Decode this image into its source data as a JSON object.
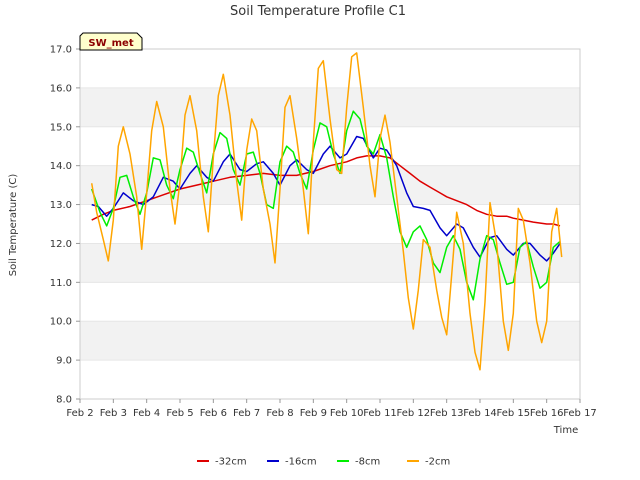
{
  "chart_data": {
    "type": "line",
    "title": "Soil Temperature Profile C1",
    "xlabel": "Time",
    "ylabel": "Soil Temperature (C)",
    "station_label": "SW_met",
    "xlim": [
      2,
      17
    ],
    "ylim": [
      8.0,
      17.0
    ],
    "x_ticks": [
      2,
      3,
      4,
      5,
      6,
      7,
      8,
      9,
      10,
      11,
      12,
      13,
      14,
      15,
      16,
      17
    ],
    "x_tick_labels": [
      "Feb 2",
      "Feb 3",
      "Feb 4",
      "Feb 5",
      "Feb 6",
      "Feb 7",
      "Feb 8",
      "Feb 9",
      "Feb 10",
      "Feb 11",
      "Feb 12",
      "Feb 13",
      "Feb 14",
      "Feb 15",
      "Feb 16",
      "Feb 17"
    ],
    "y_ticks": [
      8.0,
      9.0,
      10.0,
      11.0,
      12.0,
      13.0,
      14.0,
      15.0,
      16.0,
      17.0
    ],
    "y_tick_labels": [
      "8.0",
      "9.0",
      "10.0",
      "11.0",
      "12.0",
      "13.0",
      "14.0",
      "15.0",
      "16.0",
      "17.0"
    ],
    "grid": "horizontal bands",
    "legend_position": "bottom",
    "series": [
      {
        "name": "-32cm",
        "color": "#dd0000",
        "points": [
          [
            2.35,
            12.6
          ],
          [
            2.7,
            12.75
          ],
          [
            3.0,
            12.85
          ],
          [
            3.5,
            12.95
          ],
          [
            4.0,
            13.1
          ],
          [
            4.5,
            13.25
          ],
          [
            5.0,
            13.4
          ],
          [
            5.5,
            13.5
          ],
          [
            6.0,
            13.6
          ],
          [
            6.5,
            13.7
          ],
          [
            7.0,
            13.75
          ],
          [
            7.5,
            13.8
          ],
          [
            8.0,
            13.75
          ],
          [
            8.5,
            13.75
          ],
          [
            9.0,
            13.85
          ],
          [
            9.5,
            14.0
          ],
          [
            10.0,
            14.1
          ],
          [
            10.3,
            14.2
          ],
          [
            10.6,
            14.25
          ],
          [
            11.0,
            14.25
          ],
          [
            11.3,
            14.2
          ],
          [
            11.6,
            14.0
          ],
          [
            11.9,
            13.8
          ],
          [
            12.2,
            13.6
          ],
          [
            12.5,
            13.45
          ],
          [
            12.8,
            13.3
          ],
          [
            13.0,
            13.2
          ],
          [
            13.3,
            13.1
          ],
          [
            13.6,
            13.0
          ],
          [
            13.9,
            12.85
          ],
          [
            14.2,
            12.75
          ],
          [
            14.5,
            12.7
          ],
          [
            14.8,
            12.7
          ],
          [
            15.0,
            12.65
          ],
          [
            15.3,
            12.6
          ],
          [
            15.6,
            12.55
          ],
          [
            16.0,
            12.5
          ],
          [
            16.2,
            12.5
          ],
          [
            16.4,
            12.45
          ]
        ]
      },
      {
        "name": "-16cm",
        "color": "#0000cc",
        "points": [
          [
            2.35,
            13.0
          ],
          [
            2.55,
            12.95
          ],
          [
            2.8,
            12.7
          ],
          [
            3.0,
            12.9
          ],
          [
            3.3,
            13.3
          ],
          [
            3.6,
            13.1
          ],
          [
            3.9,
            13.0
          ],
          [
            4.2,
            13.2
          ],
          [
            4.5,
            13.7
          ],
          [
            4.8,
            13.6
          ],
          [
            5.0,
            13.4
          ],
          [
            5.3,
            13.8
          ],
          [
            5.5,
            14.0
          ],
          [
            5.8,
            13.7
          ],
          [
            6.0,
            13.6
          ],
          [
            6.3,
            14.1
          ],
          [
            6.5,
            14.3
          ],
          [
            6.8,
            13.9
          ],
          [
            7.0,
            13.85
          ],
          [
            7.3,
            14.05
          ],
          [
            7.5,
            14.1
          ],
          [
            7.8,
            13.8
          ],
          [
            8.0,
            13.5
          ],
          [
            8.3,
            14.0
          ],
          [
            8.5,
            14.15
          ],
          [
            8.8,
            13.9
          ],
          [
            9.0,
            13.8
          ],
          [
            9.3,
            14.3
          ],
          [
            9.5,
            14.5
          ],
          [
            9.8,
            14.2
          ],
          [
            10.0,
            14.3
          ],
          [
            10.3,
            14.75
          ],
          [
            10.5,
            14.7
          ],
          [
            10.8,
            14.2
          ],
          [
            11.0,
            14.45
          ],
          [
            11.2,
            14.4
          ],
          [
            11.5,
            14.0
          ],
          [
            11.8,
            13.3
          ],
          [
            12.0,
            12.95
          ],
          [
            12.3,
            12.9
          ],
          [
            12.5,
            12.85
          ],
          [
            12.8,
            12.4
          ],
          [
            13.0,
            12.2
          ],
          [
            13.3,
            12.5
          ],
          [
            13.5,
            12.4
          ],
          [
            13.8,
            11.9
          ],
          [
            14.0,
            11.65
          ],
          [
            14.3,
            12.15
          ],
          [
            14.5,
            12.2
          ],
          [
            14.8,
            11.85
          ],
          [
            15.0,
            11.7
          ],
          [
            15.3,
            12.0
          ],
          [
            15.5,
            12.0
          ],
          [
            15.8,
            11.7
          ],
          [
            16.0,
            11.55
          ],
          [
            16.2,
            11.75
          ],
          [
            16.4,
            12.0
          ]
        ]
      },
      {
        "name": "-8cm",
        "color": "#00ee00",
        "points": [
          [
            2.35,
            13.4
          ],
          [
            2.6,
            12.8
          ],
          [
            2.8,
            12.45
          ],
          [
            3.0,
            12.9
          ],
          [
            3.2,
            13.7
          ],
          [
            3.4,
            13.75
          ],
          [
            3.6,
            13.2
          ],
          [
            3.8,
            12.75
          ],
          [
            4.0,
            13.3
          ],
          [
            4.2,
            14.2
          ],
          [
            4.4,
            14.15
          ],
          [
            4.6,
            13.5
          ],
          [
            4.8,
            13.15
          ],
          [
            5.0,
            13.9
          ],
          [
            5.2,
            14.45
          ],
          [
            5.4,
            14.35
          ],
          [
            5.6,
            13.8
          ],
          [
            5.8,
            13.3
          ],
          [
            6.0,
            14.3
          ],
          [
            6.2,
            14.85
          ],
          [
            6.4,
            14.7
          ],
          [
            6.6,
            13.9
          ],
          [
            6.8,
            13.5
          ],
          [
            7.0,
            14.3
          ],
          [
            7.2,
            14.35
          ],
          [
            7.4,
            13.8
          ],
          [
            7.6,
            13.0
          ],
          [
            7.8,
            12.9
          ],
          [
            8.0,
            14.1
          ],
          [
            8.2,
            14.5
          ],
          [
            8.4,
            14.35
          ],
          [
            8.6,
            13.8
          ],
          [
            8.8,
            13.4
          ],
          [
            9.0,
            14.4
          ],
          [
            9.2,
            15.1
          ],
          [
            9.4,
            15.0
          ],
          [
            9.6,
            14.3
          ],
          [
            9.8,
            13.8
          ],
          [
            10.0,
            14.9
          ],
          [
            10.2,
            15.4
          ],
          [
            10.4,
            15.2
          ],
          [
            10.6,
            14.5
          ],
          [
            10.8,
            14.3
          ],
          [
            11.0,
            14.8
          ],
          [
            11.2,
            14.2
          ],
          [
            11.4,
            13.2
          ],
          [
            11.6,
            12.3
          ],
          [
            11.8,
            11.9
          ],
          [
            12.0,
            12.3
          ],
          [
            12.2,
            12.45
          ],
          [
            12.4,
            12.1
          ],
          [
            12.6,
            11.5
          ],
          [
            12.8,
            11.25
          ],
          [
            13.0,
            11.9
          ],
          [
            13.2,
            12.2
          ],
          [
            13.4,
            11.85
          ],
          [
            13.6,
            11.0
          ],
          [
            13.8,
            10.55
          ],
          [
            14.0,
            11.6
          ],
          [
            14.2,
            12.2
          ],
          [
            14.4,
            12.1
          ],
          [
            14.6,
            11.5
          ],
          [
            14.8,
            10.95
          ],
          [
            15.0,
            11.0
          ],
          [
            15.2,
            11.9
          ],
          [
            15.4,
            12.05
          ],
          [
            15.6,
            11.4
          ],
          [
            15.8,
            10.85
          ],
          [
            16.0,
            11.0
          ],
          [
            16.2,
            11.9
          ],
          [
            16.4,
            12.05
          ]
        ]
      },
      {
        "name": "-2cm",
        "color": "#ffa500",
        "points": [
          [
            2.35,
            13.55
          ],
          [
            2.5,
            12.8
          ],
          [
            2.7,
            12.1
          ],
          [
            2.85,
            11.55
          ],
          [
            3.0,
            12.6
          ],
          [
            3.15,
            14.5
          ],
          [
            3.3,
            15.0
          ],
          [
            3.5,
            14.3
          ],
          [
            3.7,
            13.2
          ],
          [
            3.85,
            11.85
          ],
          [
            4.0,
            13.3
          ],
          [
            4.15,
            14.9
          ],
          [
            4.3,
            15.65
          ],
          [
            4.5,
            15.0
          ],
          [
            4.7,
            13.4
          ],
          [
            4.85,
            12.5
          ],
          [
            5.0,
            13.6
          ],
          [
            5.15,
            15.3
          ],
          [
            5.3,
            15.8
          ],
          [
            5.5,
            14.9
          ],
          [
            5.7,
            13.2
          ],
          [
            5.85,
            12.3
          ],
          [
            6.0,
            14.2
          ],
          [
            6.15,
            15.8
          ],
          [
            6.3,
            16.35
          ],
          [
            6.5,
            15.3
          ],
          [
            6.7,
            13.6
          ],
          [
            6.85,
            12.6
          ],
          [
            7.0,
            14.4
          ],
          [
            7.15,
            15.2
          ],
          [
            7.3,
            14.9
          ],
          [
            7.5,
            13.4
          ],
          [
            7.7,
            12.5
          ],
          [
            7.85,
            11.5
          ],
          [
            8.0,
            13.4
          ],
          [
            8.15,
            15.5
          ],
          [
            8.3,
            15.8
          ],
          [
            8.5,
            14.7
          ],
          [
            8.7,
            13.4
          ],
          [
            8.85,
            12.25
          ],
          [
            9.0,
            14.6
          ],
          [
            9.15,
            16.5
          ],
          [
            9.3,
            16.7
          ],
          [
            9.5,
            15.2
          ],
          [
            9.7,
            13.9
          ],
          [
            9.85,
            13.8
          ],
          [
            10.0,
            15.5
          ],
          [
            10.15,
            16.8
          ],
          [
            10.3,
            16.9
          ],
          [
            10.5,
            15.5
          ],
          [
            10.7,
            14.0
          ],
          [
            10.85,
            13.2
          ],
          [
            11.0,
            14.7
          ],
          [
            11.15,
            15.3
          ],
          [
            11.3,
            14.6
          ],
          [
            11.5,
            13.2
          ],
          [
            11.7,
            11.8
          ],
          [
            11.85,
            10.6
          ],
          [
            12.0,
            9.8
          ],
          [
            12.15,
            10.8
          ],
          [
            12.3,
            12.1
          ],
          [
            12.5,
            11.9
          ],
          [
            12.7,
            10.8
          ],
          [
            12.85,
            10.1
          ],
          [
            13.0,
            9.65
          ],
          [
            13.15,
            11.2
          ],
          [
            13.3,
            12.8
          ],
          [
            13.5,
            12.0
          ],
          [
            13.7,
            10.2
          ],
          [
            13.85,
            9.2
          ],
          [
            14.0,
            8.75
          ],
          [
            14.15,
            10.5
          ],
          [
            14.3,
            13.05
          ],
          [
            14.5,
            12.0
          ],
          [
            14.7,
            10.0
          ],
          [
            14.85,
            9.25
          ],
          [
            15.0,
            10.2
          ],
          [
            15.15,
            12.9
          ],
          [
            15.3,
            12.6
          ],
          [
            15.5,
            11.5
          ],
          [
            15.7,
            10.0
          ],
          [
            15.85,
            9.45
          ],
          [
            16.0,
            10.0
          ],
          [
            16.15,
            12.3
          ],
          [
            16.3,
            12.9
          ],
          [
            16.45,
            11.65
          ]
        ]
      }
    ]
  }
}
